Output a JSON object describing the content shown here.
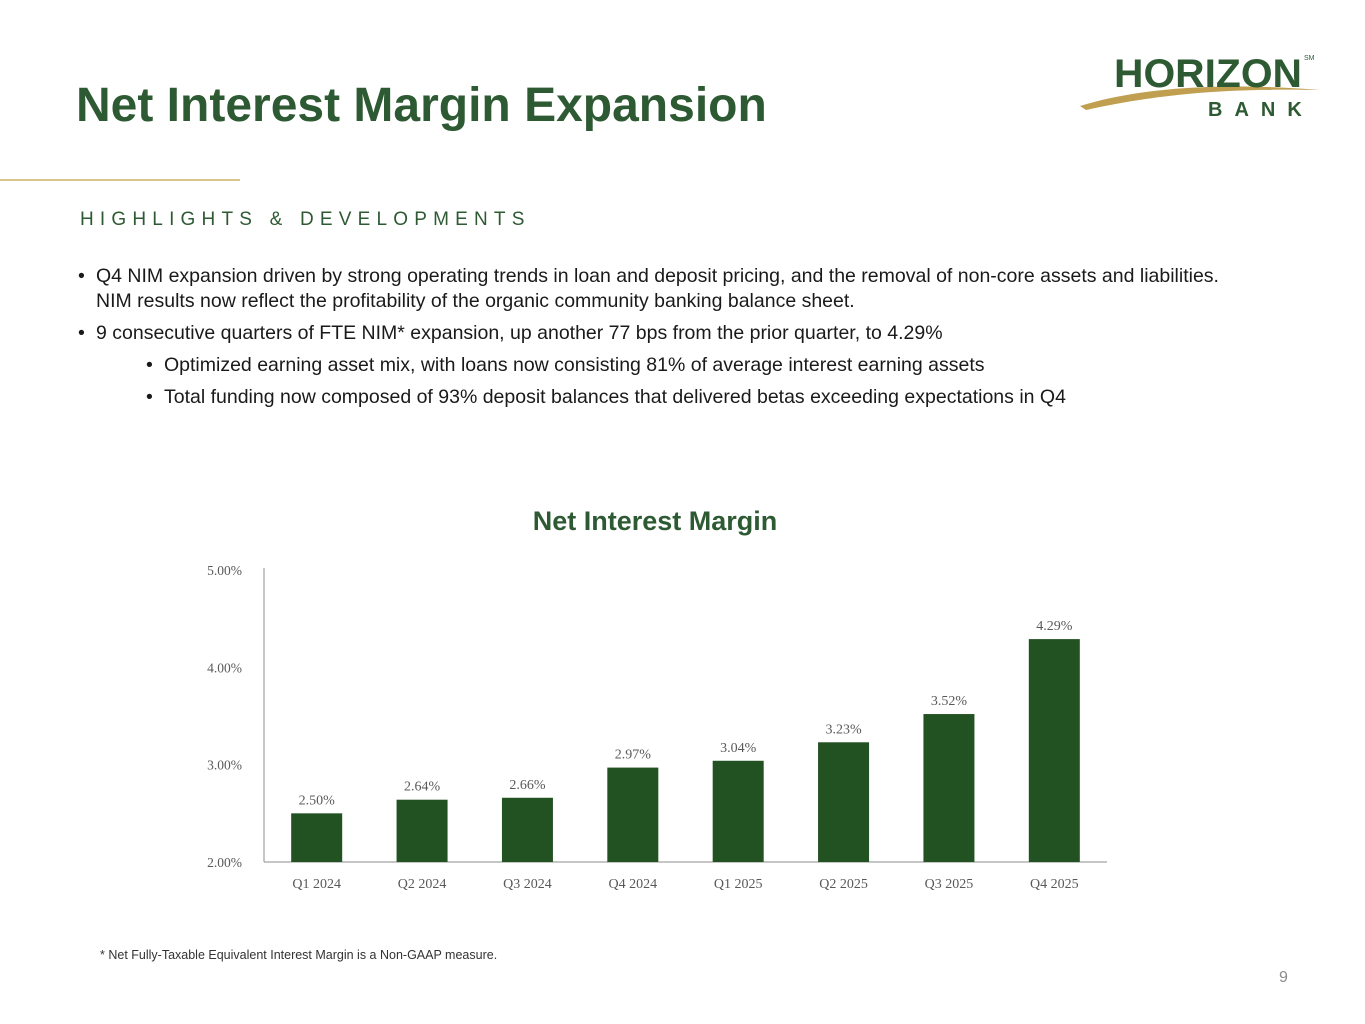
{
  "slide": {
    "title": "Net Interest Margin Expansion",
    "section_label": "HIGHLIGHTS & DEVELOPMENTS",
    "footnote": "* Net Fully-Taxable Equivalent Interest Margin is a Non-GAAP measure.",
    "page_number": "9"
  },
  "logo": {
    "name": "HORIZON",
    "sub": "BANK",
    "mark": "SM"
  },
  "bullets": {
    "marker": "•",
    "item1": "Q4 NIM expansion driven by strong operating trends in loan and deposit pricing, and the removal of non-core assets and liabilities. NIM results now reflect the profitability of the organic community banking balance sheet.",
    "item2": "9 consecutive quarters of FTE NIM* expansion, up another 77 bps from the prior quarter, to 4.29%",
    "sub1": "Optimized earning asset mix, with loans now consisting 81% of average interest earning assets",
    "sub2": "Total funding now composed of 93% deposit balances that delivered betas exceeding expectations in Q4"
  },
  "colors": {
    "title_green": "#2e5a33",
    "bar_green": "#225222",
    "gold": "#c0a050",
    "axis_text": "#595959"
  },
  "chart_data": {
    "type": "bar",
    "title": "Net Interest Margin",
    "categories": [
      "Q1 2024",
      "Q2 2024",
      "Q3 2024",
      "Q4 2024",
      "Q1 2025",
      "Q2 2025",
      "Q3 2025",
      "Q4 2025"
    ],
    "values": [
      2.5,
      2.64,
      2.66,
      2.97,
      3.04,
      3.23,
      3.52,
      4.29
    ],
    "value_labels": [
      "2.50%",
      "2.64%",
      "2.66%",
      "2.97%",
      "3.04%",
      "3.23%",
      "3.52%",
      "4.29%"
    ],
    "ylim": [
      2.0,
      5.0
    ],
    "yticks": [
      2.0,
      3.0,
      4.0,
      5.0
    ],
    "ytick_labels": [
      "2.00%",
      "3.00%",
      "4.00%",
      "5.00%"
    ],
    "grid": false,
    "legend": "none"
  }
}
